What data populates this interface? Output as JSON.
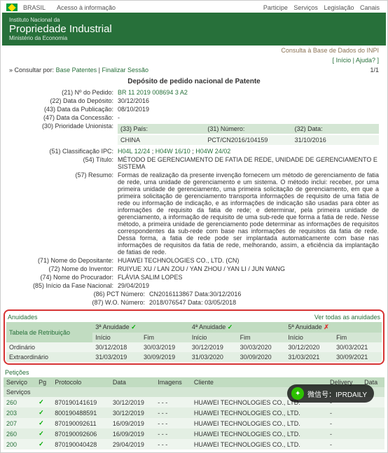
{
  "topbar": {
    "country": "BRASIL",
    "access": "Acesso à informação",
    "links": [
      "Participe",
      "Serviços",
      "Legislação",
      "Canais"
    ]
  },
  "header": {
    "sub1": "Instituto Nacional da",
    "main": "Propriedade Industrial",
    "sub2": "Ministério da Economia"
  },
  "consult": "Consulta à Base de Dados do INPI",
  "help": {
    "inicio": "Início",
    "ajuda": "Ajuda?"
  },
  "crumb": {
    "prefix": "» Consultar por:",
    "base": "Base Patentes",
    "finalizar": "Finalizar Sessão",
    "page": "1/1"
  },
  "title": "Depósito de pedido nacional de Patente",
  "f": {
    "l21": "(21)  Nº do Pedido:",
    "v21": "BR 11 2019 008694 3 A2",
    "l22": "(22)  Data do Depósito:",
    "v22": "30/12/2016",
    "l43": "(43)  Data da Publicação:",
    "v43": "08/10/2019",
    "l47": "(47)  Data da Concessão:",
    "v47": "-",
    "l30": "(30)  Prioridade Unionista:",
    "prio": {
      "h1": "(33)  País:",
      "h2": "(31)  Número:",
      "h3": "(32)  Data:",
      "v1": "CHINA",
      "v2": "PCT/CN2016/104159",
      "v3": "31/10/2016"
    },
    "l51": "(51)  Classificação IPC:",
    "v51a": "H04L 12/24",
    "v51b": "H04W 16/10",
    "v51c": "H04W 24/02",
    "l54": "(54)  Título:",
    "v54": "MÉTODO DE GERENCIAMENTO DE FATIA DE REDE, UNIDADE DE GERENCIAMENTO E SISTEMA",
    "l57": "(57)  Resumo:",
    "v57": "Formas de realização da presente invenção fornecem um método de gerenciamento de fatia de rede, uma unidade de gerenciamento e um sistema. O método inclui: receber, por uma primeira unidade de gerenciamento, uma primeira solicitação de gerenciamento, em que a primeira solicitação de gerenciamento transporta informações de requisito de uma fatia de rede ou informação de indicação, e as informações de indicação são usadas para obter as informações de requisito da fatia de rede; e determinar, pela primeira unidade de gerenciamento, a informação de requisito de uma sub-rede que forma a fatia de rede. Nesse método, a primeira unidade de gerenciamento pode determinar as informações de requisitos correspondentes da sub-rede com base nas informações de requisitos da fatia de rede. Dessa forma, a fatia de rede pode ser implantada automaticamente com base nas informações de requisitos da fatia de rede, melhorando, assim, a eficiência da implantação de fatias de rede.",
    "l71": "(71)  Nome do Depositante:",
    "v71": "HUAWEI TECHNOLOGIES CO., LTD. (CN)",
    "l72": "(72)  Nome do Inventor:",
    "v72": "RUIYUE XU / LAN ZOU / YAN ZHOU / YAN LI / JUN WANG",
    "l74": "(74)  Nome do Procurador:",
    "v74": "FLÁVIA SALIM LOPES",
    "l85": "(85)  Início da Fase Nacional:",
    "v85": "29/04/2019",
    "l86": "(86)  PCT    Número:",
    "v86": "CN2016113867     Data:30/12/2016",
    "l87": "(87)  W.O.  Número:",
    "v87": "2018/076547       Data: 03/05/2018"
  },
  "ann": {
    "title": "Anuidades",
    "link": "Ver todas as anuidades",
    "retrib": "Tabela de Retribuição",
    "h3": "3ª Anuidade",
    "h4": "4ª Anuidade",
    "h5": "5ª Anuidade",
    "inicio": "Início",
    "fim": "Fim",
    "ord": "Ordinário",
    "ext": "Extraordinário",
    "r": [
      [
        "30/12/2018",
        "30/03/2019",
        "30/12/2019",
        "30/03/2020",
        "30/12/2020",
        "30/03/2021"
      ],
      [
        "31/03/2019",
        "30/09/2019",
        "31/03/2020",
        "30/09/2020",
        "31/03/2021",
        "30/09/2021"
      ]
    ]
  },
  "pet": {
    "title": "Petições",
    "h": [
      "Serviço",
      "Pg",
      "Protocolo",
      "Data",
      "Imagens",
      "Cliente",
      "Delivery",
      "Data"
    ],
    "servicos": "Serviços",
    "rows": [
      {
        "s": "260",
        "p": "870190141619",
        "d": "30/12/2019",
        "i": "-  -  -",
        "c": "HUAWEI TECHNOLOGIES CO., LTD.",
        "dl": "-"
      },
      {
        "s": "203",
        "p": "800190488591",
        "d": "30/12/2019",
        "i": "-  -  -",
        "c": "HUAWEI TECHNOLOGIES CO., LTD.",
        "dl": "-"
      },
      {
        "s": "207",
        "p": "870190092611",
        "d": "16/09/2019",
        "i": "-  -  -",
        "c": "HUAWEI TECHNOLOGIES CO., LTD.",
        "dl": "-"
      },
      {
        "s": "260",
        "p": "870190092606",
        "d": "16/09/2019",
        "i": "-  -  -",
        "c": "HUAWEI TECHNOLOGIES CO., LTD.",
        "dl": "-"
      },
      {
        "s": "200",
        "p": "870190040428",
        "d": "29/04/2019",
        "i": "-  -  -",
        "c": "HUAWEI TECHNOLOGIES CO., LTD.",
        "dl": "-"
      }
    ]
  },
  "wechat": {
    "label": "微信号：IPRDAILY"
  }
}
